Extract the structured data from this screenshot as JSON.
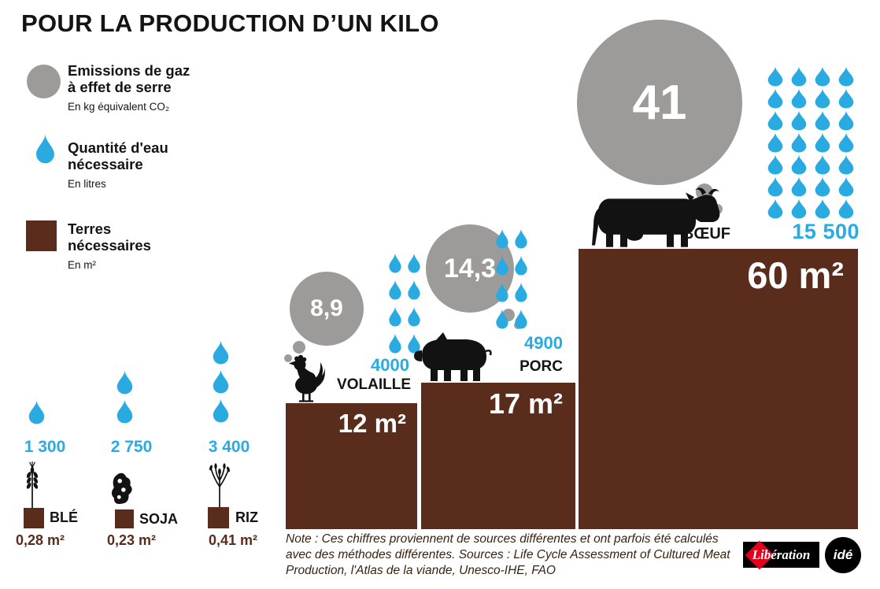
{
  "title": "POUR LA PRODUCTION D’UN KILO",
  "legend": {
    "co2": {
      "label_line1": "Emissions de gaz",
      "label_line2": "à effet de serre",
      "unit": "En kg équivalent CO₂"
    },
    "water": {
      "label_line1": "Quantité d'eau",
      "label_line2": "nécessaire",
      "unit": "En litres"
    },
    "land": {
      "label_line1": "Terres",
      "label_line2": "nécessaires",
      "unit": "En m²"
    }
  },
  "items": {
    "ble": {
      "name": "BLÉ",
      "water": "1 300",
      "land": "0,28 m²"
    },
    "soja": {
      "name": "SOJA",
      "water": "2 750",
      "land": "0,23 m²"
    },
    "riz": {
      "name": "RIZ",
      "water": "3 400",
      "land": "0,41 m²"
    },
    "volaille": {
      "name": "VOLAILLE",
      "co2": "8,9",
      "water": "4000",
      "land": "12 m²"
    },
    "porc": {
      "name": "PORC",
      "co2": "14,3",
      "water": "4900",
      "land": "17 m²"
    },
    "boeuf": {
      "name": "BŒUF",
      "co2": "41",
      "water": "15 500",
      "land": "60 m²"
    }
  },
  "droplet_counts": {
    "legend_symbol": 1,
    "ble": 1,
    "soja": 2,
    "riz": 3,
    "volaille": 8,
    "porc": 8,
    "boeuf": 28
  },
  "note": "Note : Ces chiffres proviennent de sources différentes et ont parfois été calculés avec des méthodes différentes. Sources : Life Cycle Assessment of Cultured Meat Production, l'Atlas de la viande, Unesco-IHE, FAO",
  "logos": {
    "liberation": "Libération",
    "ide": "idé"
  },
  "colors": {
    "brown": "#5a2c1c",
    "blue": "#29abe2",
    "gray": "#9c9b9a",
    "ink": "#141414",
    "red": "#e2001a"
  },
  "icons": {
    "co2-symbol": "gray-circle",
    "water-symbol": "blue-teardrop",
    "land-symbol": "brown-square",
    "ble": "wheat-stalk-silhouette",
    "soja": "soybean-pod-silhouette",
    "riz": "rice-plant-silhouette",
    "volaille": "rooster-silhouette",
    "porc": "pig-silhouette",
    "boeuf": "cow-silhouette"
  },
  "chart_data": {
    "type": "bar",
    "title": "POUR LA PRODUCTION D’UN KILO",
    "categories": [
      "Blé",
      "Soja",
      "Riz",
      "Volaille",
      "Porc",
      "Bœuf"
    ],
    "series": [
      {
        "name": "Emissions de gaz à effet de serre (kg équivalent CO₂)",
        "values": [
          null,
          null,
          null,
          8.9,
          14.3,
          41
        ]
      },
      {
        "name": "Quantité d'eau nécessaire (litres)",
        "values": [
          1300,
          2750,
          3400,
          4000,
          4900,
          15500
        ]
      },
      {
        "name": "Terres nécessaires (m²)",
        "values": [
          0.28,
          0.23,
          0.41,
          12,
          17,
          60
        ]
      }
    ],
    "legend_position": "top-left",
    "grid": false,
    "note": "Ces chiffres proviennent de sources différentes et ont parfois été calculés avec des méthodes différentes.",
    "sources": "Life Cycle Assessment of Cultured Meat Production, l'Atlas de la viande, Unesco-IHE, FAO"
  }
}
